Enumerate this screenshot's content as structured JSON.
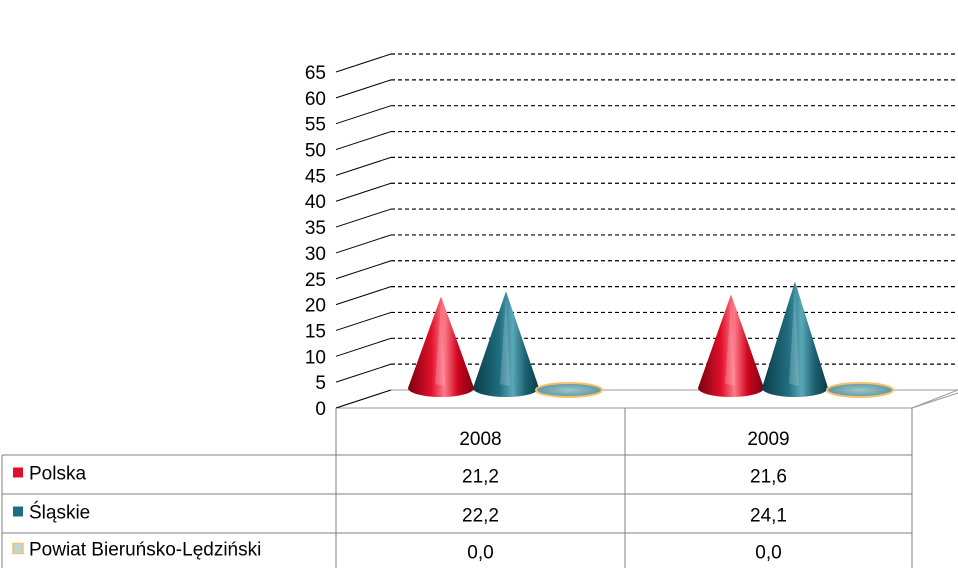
{
  "chart_data": {
    "type": "bar",
    "shape": "cone-3d",
    "categories": [
      "2008",
      "2009"
    ],
    "series": [
      {
        "name": "Polska",
        "values": [
          21.2,
          21.6
        ],
        "color": "#e0102a",
        "value_labels": [
          "21,2",
          "21,6"
        ]
      },
      {
        "name": "Śląskie",
        "values": [
          22.2,
          24.1
        ],
        "color": "#1f6e80",
        "value_labels": [
          "22,2",
          "24,1"
        ]
      },
      {
        "name": "Powiat Bieruńsko-Lędziński",
        "values": [
          0.0,
          0.0
        ],
        "color": "#7fb0b8",
        "value_labels": [
          "0,0",
          "0,0"
        ]
      }
    ],
    "ylim": [
      0,
      65
    ],
    "yticks": [
      "0",
      "5",
      "10",
      "15",
      "20",
      "25",
      "30",
      "35",
      "40",
      "45",
      "50",
      "55",
      "60",
      "65"
    ],
    "grid": "dashed",
    "legend": "data-table"
  }
}
